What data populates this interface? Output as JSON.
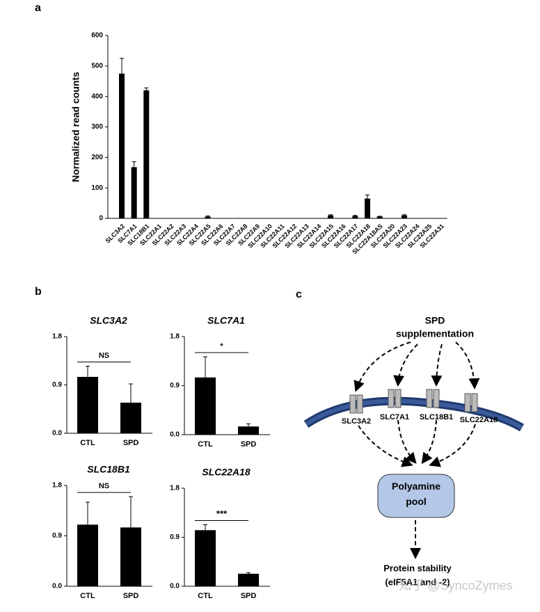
{
  "panel_labels": [
    "a",
    "b",
    "c"
  ],
  "chart_data": [
    {
      "type": "bar",
      "ylabel": "Normalized read counts",
      "categories": [
        "SLC3A2",
        "SLC7A1",
        "SLC18B1",
        "SLC22A1",
        "SLC22A2",
        "SLC22A3",
        "SLC22A4",
        "SLC22A5",
        "SLC22A6",
        "SLC22A7",
        "SLC22A8",
        "SLC22A9",
        "SLC22A10",
        "SLC22A11",
        "SLC22A12",
        "SLC22A13",
        "SLC22A14",
        "SLC22A15",
        "SLC22A16",
        "SLC22A17",
        "SLC22A18",
        "SLC22A18AS",
        "SLC22A20",
        "SLC22A23",
        "SLC22A24",
        "SLC22A25",
        "SLC22A31"
      ],
      "values": [
        475,
        168,
        420,
        0,
        0,
        0,
        0,
        6,
        0,
        0,
        0,
        0,
        0,
        0,
        0,
        0,
        0,
        10,
        0,
        8,
        65,
        6,
        0,
        10,
        0,
        0,
        0
      ],
      "errors": [
        50,
        18,
        8,
        0,
        0,
        0,
        0,
        2,
        0,
        0,
        0,
        0,
        0,
        0,
        0,
        0,
        0,
        2,
        0,
        2,
        12,
        1,
        0,
        2,
        0,
        0,
        0
      ],
      "color": "#000000",
      "ylim": [
        0,
        600
      ],
      "yticks": [
        0,
        100,
        200,
        300,
        400,
        500,
        600
      ]
    },
    {
      "type": "bar",
      "title": "SLC3A2",
      "categories": [
        "CTL",
        "SPD"
      ],
      "values": [
        1.05,
        0.57
      ],
      "errors": [
        0.2,
        0.35
      ],
      "color": "#000000",
      "ylim": [
        0,
        1.8
      ],
      "yticks": [
        {
          "value": 0,
          "label": "0.0"
        },
        0.9,
        1.8
      ],
      "annotation": "NS"
    },
    {
      "type": "bar",
      "title": "SLC7A1",
      "categories": [
        "CTL",
        "SPD"
      ],
      "values": [
        1.05,
        0.15
      ],
      "errors": [
        0.38,
        0.05
      ],
      "color": "#000000",
      "ylim": [
        0,
        1.8
      ],
      "yticks": [
        {
          "value": 0,
          "label": "0.0"
        },
        0.9,
        1.8
      ],
      "annotation": "*"
    },
    {
      "type": "bar",
      "title": "SLC18B1",
      "categories": [
        "CTL",
        "SPD"
      ],
      "values": [
        1.1,
        1.05
      ],
      "errors": [
        0.4,
        0.55
      ],
      "color": "#000000",
      "ylim": [
        0,
        1.8
      ],
      "yticks": [
        {
          "value": 0,
          "label": "0.0"
        },
        0.9,
        1.8
      ],
      "annotation": "NS"
    },
    {
      "type": "bar",
      "title": "SLC22A18",
      "categories": [
        "CTL",
        "SPD"
      ],
      "values": [
        1.03,
        0.23
      ],
      "errors": [
        0.1,
        0.02
      ],
      "color": "#000000",
      "ylim": [
        0,
        1.8
      ],
      "yticks": [
        {
          "value": 0,
          "label": "0.0"
        },
        0.9,
        1.8
      ],
      "annotation": "***"
    }
  ],
  "diagram": {
    "source": "SPD supplementation",
    "transporters": [
      "SLC3A2",
      "SLC7A1",
      "SLC18B1",
      "SLC22A18"
    ],
    "pool": "Polyamine pool",
    "target": "Protein stability",
    "target_note": "(eIF5A1 and -2)"
  },
  "watermark": "知乎 @SyncoZymes"
}
